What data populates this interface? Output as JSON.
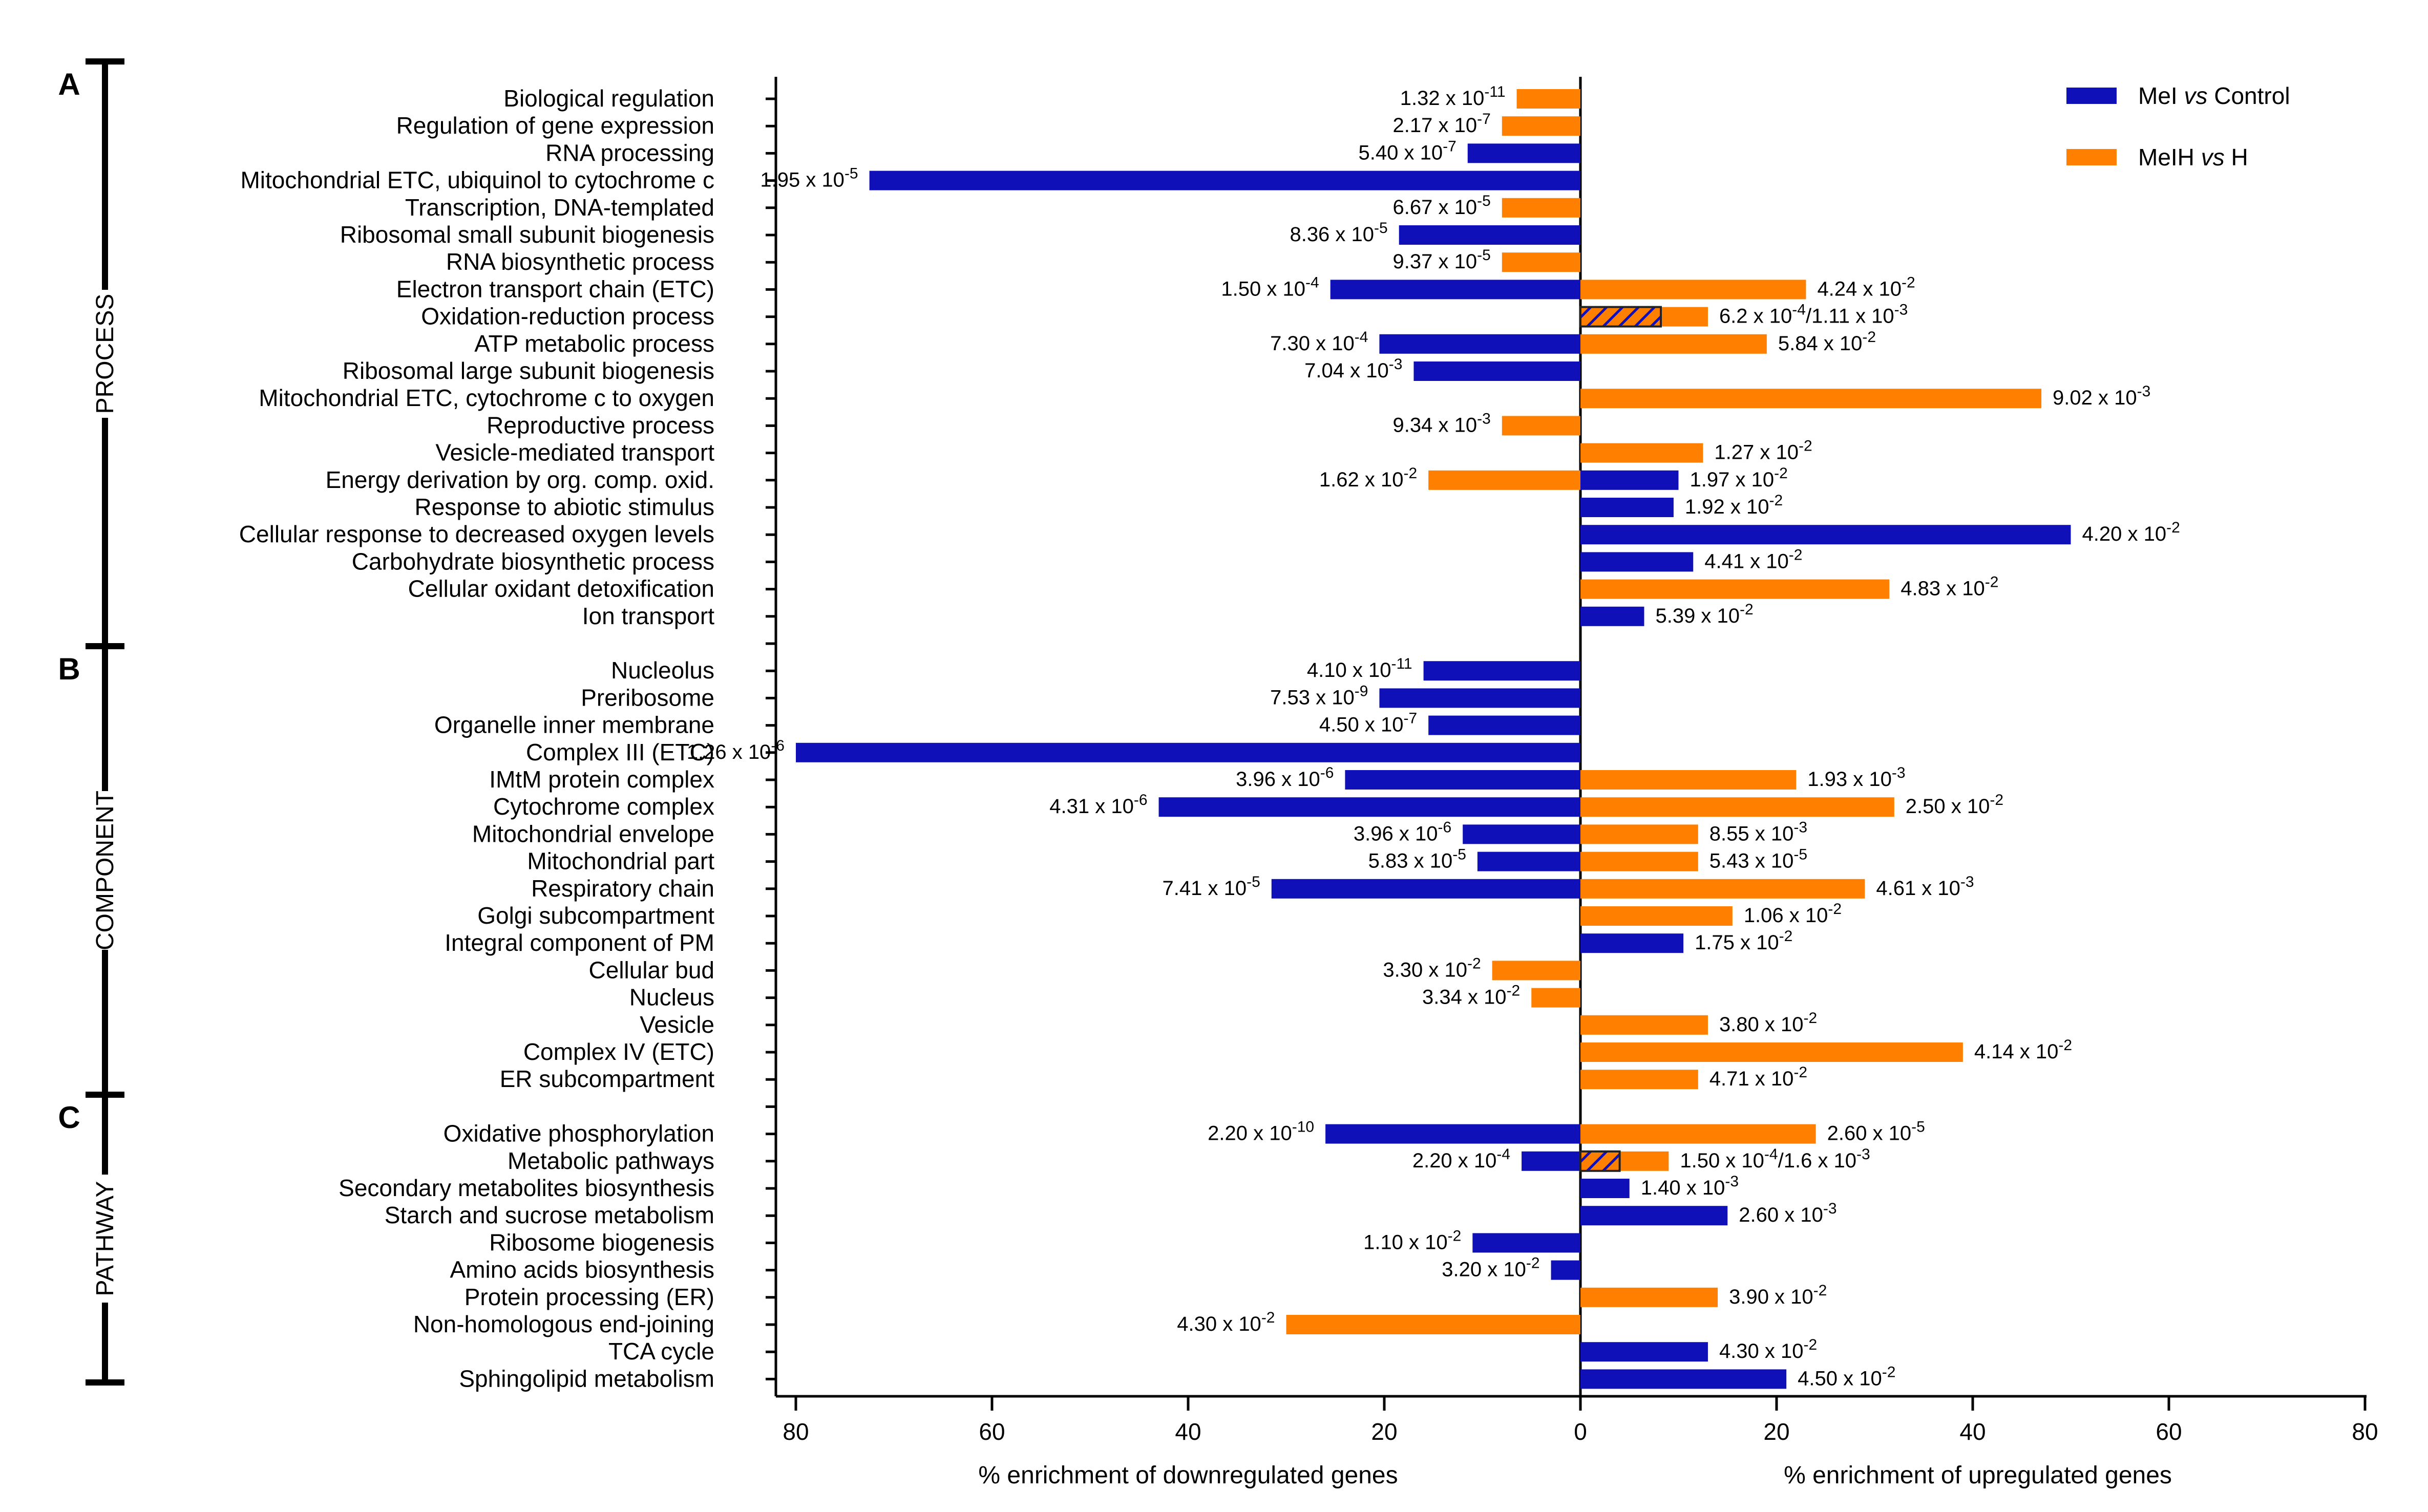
{
  "chart_data": {
    "type": "bar",
    "orientation": "horizontal",
    "diverging": true,
    "title": "",
    "xlabel_left": "% enrichment of downregulated genes",
    "xlabel_right": "% enrichment of upregulated genes",
    "xlim": [
      -80,
      80
    ],
    "xticks": [
      -80,
      -60,
      -40,
      -20,
      0,
      20,
      40,
      60,
      80
    ],
    "xtick_labels": [
      "80",
      "60",
      "40",
      "20",
      "0",
      "20",
      "40",
      "60",
      "80"
    ],
    "legend": {
      "position": "top-right",
      "items": [
        {
          "name_pre": "MeI ",
          "name_italic": "vs",
          "name_post": " Control",
          "color": "#1010b8"
        },
        {
          "name_pre": "MeIH ",
          "name_italic": "vs",
          "name_post": " H",
          "color": "#ff8000"
        }
      ]
    },
    "colors": {
      "blue": "#1010b8",
      "orange": "#ff8000",
      "overlap": "#7a4a6a"
    },
    "sections": [
      {
        "letter": "A",
        "name": "PROCESS"
      },
      {
        "letter": "B",
        "name": "COMPONENT"
      },
      {
        "letter": "C",
        "name": "PATHWAY"
      }
    ],
    "rows": [
      {
        "label": "Biological regulation",
        "section": 0,
        "value": -6.5,
        "series": "orange",
        "pm": "1.32 x 10",
        "pe": "-11"
      },
      {
        "label": "Regulation of gene expression",
        "section": 0,
        "value": -8,
        "series": "orange",
        "pm": "2.17 x 10",
        "pe": "-7"
      },
      {
        "label": "RNA processing",
        "section": 0,
        "value": -11.5,
        "series": "blue",
        "pm": "5.40 x 10",
        "pe": "-7"
      },
      {
        "label": "Mitochondrial ETC, ubiquinol to cytochrome c",
        "section": 0,
        "value": -72.5,
        "series": "blue",
        "pm": "1.95 x 10",
        "pe": "-5"
      },
      {
        "label": "Transcription, DNA-templated",
        "section": 0,
        "value": -8,
        "series": "orange",
        "pm": "6.67 x 10",
        "pe": "-5"
      },
      {
        "label": "Ribosomal small subunit biogenesis",
        "section": 0,
        "value": -18.5,
        "series": "blue",
        "pm": "8.36 x 10",
        "pe": "-5"
      },
      {
        "label": "RNA biosynthetic process",
        "section": 0,
        "value": -8,
        "series": "orange",
        "pm": "9.37 x 10",
        "pe": "-5"
      },
      {
        "label": "Electron transport chain (ETC)",
        "section": 0,
        "value": -25.5,
        "series": "blue",
        "pm": "1.50 x 10",
        "pe": "-4",
        "value2": 23,
        "series2": "orange",
        "pm2": "4.24 x 10",
        "pe2": "-2"
      },
      {
        "label": "Oxidation-reduction process",
        "section": 0,
        "value": 13,
        "series": "orange",
        "overlap": 8.2,
        "pm": "6.2 x 10",
        "pe": "-4",
        "pm_b": "/1.11 x 10",
        "pe_b": "-3"
      },
      {
        "label": "ATP metabolic process",
        "section": 0,
        "value": -20.5,
        "series": "blue",
        "pm": "7.30 x 10",
        "pe": "-4",
        "value2": 19,
        "series2": "orange",
        "pm2": "5.84 x 10",
        "pe2": "-2"
      },
      {
        "label": "Ribosomal large subunit biogenesis",
        "section": 0,
        "value": -17,
        "series": "blue",
        "pm": "7.04 x 10",
        "pe": "-3"
      },
      {
        "label": "Mitochondrial ETC, cytochrome c to oxygen",
        "section": 0,
        "value": 47,
        "series": "orange",
        "pm": "9.02 x 10",
        "pe": "-3"
      },
      {
        "label": "Reproductive process",
        "section": 0,
        "value": -8,
        "series": "orange",
        "pm": "9.34 x 10",
        "pe": "-3"
      },
      {
        "label": "Vesicle-mediated transport",
        "section": 0,
        "value": 12.5,
        "series": "orange",
        "pm": "1.27 x 10",
        "pe": "-2"
      },
      {
        "label": "Energy derivation by org. comp. oxid.",
        "section": 0,
        "value": -15.5,
        "series": "orange",
        "pm": "1.62 x 10",
        "pe": "-2",
        "value2": 10,
        "series2": "blue",
        "pm2": "1.97 x 10",
        "pe2": "-2"
      },
      {
        "label": "Response to abiotic stimulus",
        "section": 0,
        "value": 9.5,
        "series": "blue",
        "pm": "1.92 x 10",
        "pe": "-2"
      },
      {
        "label": "Cellular response to decreased oxygen levels",
        "section": 0,
        "value": 50,
        "series": "blue",
        "pm": "4.20 x 10",
        "pe": "-2"
      },
      {
        "label": "Carbohydrate biosynthetic process",
        "section": 0,
        "value": 11.5,
        "series": "blue",
        "pm": "4.41 x 10",
        "pe": "-2"
      },
      {
        "label": "Cellular oxidant detoxification",
        "section": 0,
        "value": 31.5,
        "series": "orange",
        "pm": "4.83 x 10",
        "pe": "-2"
      },
      {
        "label": "Ion transport",
        "section": 0,
        "value": 6.5,
        "series": "blue",
        "pm": "5.39 x 10",
        "pe": "-2"
      },
      {
        "label": "Nucleolus",
        "section": 1,
        "value": -16,
        "series": "blue",
        "pm": "4.10 x 10",
        "pe": "-11"
      },
      {
        "label": "Preribosome",
        "section": 1,
        "value": -20.5,
        "series": "blue",
        "pm": "7.53 x 10",
        "pe": "-9"
      },
      {
        "label": "Organelle inner membrane",
        "section": 1,
        "value": -15.5,
        "series": "blue",
        "pm": "4.50 x 10",
        "pe": "-7"
      },
      {
        "label": "Complex III (ETC)",
        "section": 1,
        "value": -80,
        "series": "blue",
        "pm": "1.26 x 10",
        "pe": "-6"
      },
      {
        "label": "IMtM protein complex",
        "section": 1,
        "value": -24,
        "series": "blue",
        "pm": "3.96 x 10",
        "pe": "-6",
        "value2": 22,
        "series2": "orange",
        "pm2": "1.93 x 10",
        "pe2": "-3"
      },
      {
        "label": "Cytochrome complex",
        "section": 1,
        "value": -43,
        "series": "blue",
        "pm": "4.31 x 10",
        "pe": "-6",
        "value2": 32,
        "series2": "orange",
        "pm2": "2.50 x 10",
        "pe2": "-2"
      },
      {
        "label": "Mitochondrial envelope",
        "section": 1,
        "value": -12,
        "series": "blue",
        "pm": "3.96 x 10",
        "pe": "-6",
        "value2": 12,
        "series2": "orange",
        "pm2": "8.55 x 10",
        "pe2": "-3"
      },
      {
        "label": "Mitochondrial part",
        "section": 1,
        "value": -10.5,
        "series": "blue",
        "pm": "5.83 x 10",
        "pe": "-5",
        "value2": 12,
        "series2": "orange",
        "pm2": "5.43 x 10",
        "pe2": "-5"
      },
      {
        "label": "Respiratory chain",
        "section": 1,
        "value": -31.5,
        "series": "blue",
        "pm": "7.41 x 10",
        "pe": "-5",
        "value2": 29,
        "series2": "orange",
        "pm2": "4.61 x 10",
        "pe2": "-3"
      },
      {
        "label": "Golgi subcompartment",
        "section": 1,
        "value": 15.5,
        "series": "orange",
        "pm": "1.06 x 10",
        "pe": "-2"
      },
      {
        "label": "Integral component of PM",
        "section": 1,
        "value": 10.5,
        "series": "blue",
        "pm": "1.75 x 10",
        "pe": "-2"
      },
      {
        "label": "Cellular bud",
        "section": 1,
        "value": -9,
        "series": "orange",
        "pm": "3.30 x 10",
        "pe": "-2"
      },
      {
        "label": "Nucleus",
        "section": 1,
        "value": -5,
        "series": "orange",
        "pm": "3.34 x 10",
        "pe": "-2"
      },
      {
        "label": "Vesicle",
        "section": 1,
        "value": 13,
        "series": "orange",
        "pm": "3.80 x 10",
        "pe": "-2"
      },
      {
        "label": "Complex IV (ETC)",
        "section": 1,
        "value": 39,
        "series": "orange",
        "pm": "4.14 x 10",
        "pe": "-2"
      },
      {
        "label": "ER subcompartment",
        "section": 1,
        "value": 12,
        "series": "orange",
        "pm": "4.71 x 10",
        "pe": "-2"
      },
      {
        "label": "Oxidative phosphorylation",
        "section": 2,
        "value": -26,
        "series": "blue",
        "pm": "2.20 x 10",
        "pe": "-10",
        "value2": 24,
        "series2": "orange",
        "pm2": "2.60 x 10",
        "pe2": "-5"
      },
      {
        "label": "Metabolic pathways",
        "section": 2,
        "value": -6,
        "series": "blue",
        "pm": "2.20 x 10",
        "pe": "-4",
        "value2": 9,
        "series2": "orange",
        "overlap2": 4,
        "pm2": "1.50 x 10",
        "pe2": "-4",
        "pm2_b": "/1.6 x 10",
        "pe2_b": "-3"
      },
      {
        "label": "Secondary metabolites biosynthesis",
        "section": 2,
        "value": 5,
        "series": "blue",
        "pm": "1.40 x 10",
        "pe": "-3"
      },
      {
        "label": "Starch and sucrose metabolism",
        "section": 2,
        "value": 15,
        "series": "blue",
        "pm": "2.60 x 10",
        "pe": "-3"
      },
      {
        "label": "Ribosome biogenesis",
        "section": 2,
        "value": -11,
        "series": "blue",
        "pm": "1.10 x 10",
        "pe": "-2"
      },
      {
        "label": "Amino acids biosynthesis",
        "section": 2,
        "value": -3,
        "series": "blue",
        "pm": "3.20 x 10",
        "pe": "-2"
      },
      {
        "label": "Protein processing (ER)",
        "section": 2,
        "value": 14,
        "series": "orange",
        "pm": "3.90 x 10",
        "pe": "-2"
      },
      {
        "label": "Non-homologous end-joining",
        "section": 2,
        "value": -30,
        "series": "orange",
        "pm": "4.30 x 10",
        "pe": "-2"
      },
      {
        "label": "TCA cycle",
        "section": 2,
        "value": 13,
        "series": "blue",
        "pm": "4.30 x 10",
        "pe": "-2"
      },
      {
        "label": "Sphingolipid metabolism",
        "section": 2,
        "value": 21,
        "series": "blue",
        "pm": "4.50 x 10",
        "pe": "-2"
      }
    ]
  }
}
